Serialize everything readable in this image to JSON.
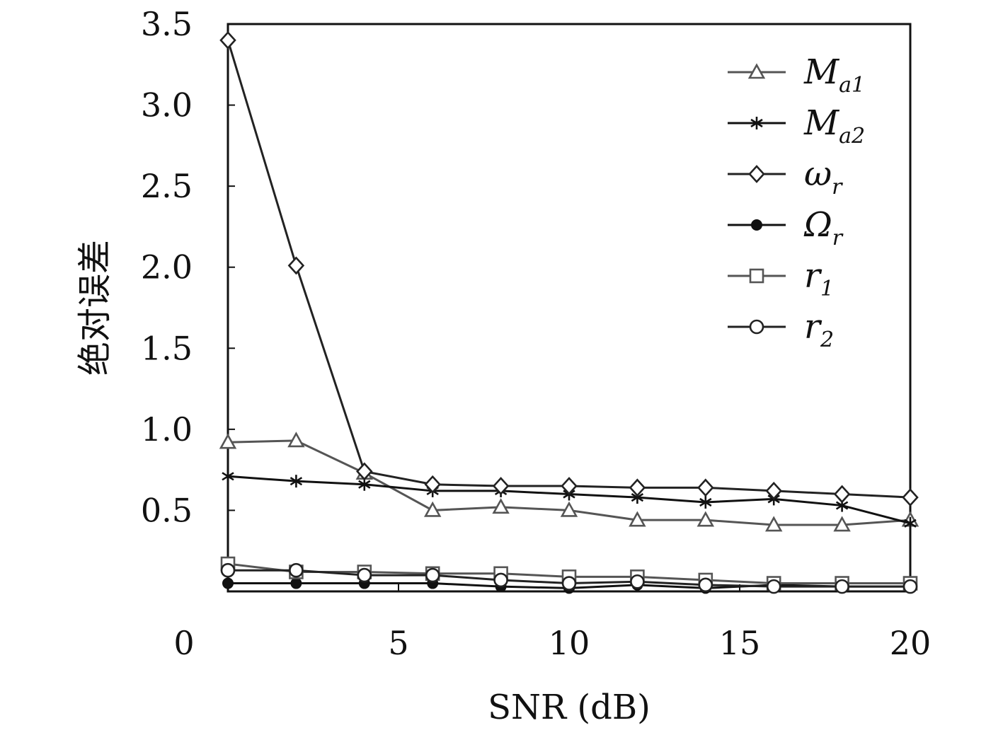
{
  "chart_data": {
    "type": "line",
    "xlabel": "SNR (dB)",
    "ylabel": "绝对误差",
    "xlim": [
      0,
      20
    ],
    "ylim": [
      0,
      3.5
    ],
    "x_ticks": [
      {
        "value": 0,
        "label": "0"
      },
      {
        "value": 5,
        "label": "5"
      },
      {
        "value": 10,
        "label": "10"
      },
      {
        "value": 15,
        "label": "15"
      },
      {
        "value": 20,
        "label": "20"
      }
    ],
    "y_ticks": [
      {
        "value": 0.5,
        "label": "0.5"
      },
      {
        "value": 1.0,
        "label": "1.0"
      },
      {
        "value": 1.5,
        "label": "1.5"
      },
      {
        "value": 2.0,
        "label": "2.0"
      },
      {
        "value": 2.5,
        "label": "2.5"
      },
      {
        "value": 3.0,
        "label": "3.0"
      },
      {
        "value": 3.5,
        "label": "3.5"
      }
    ],
    "x": [
      0,
      2,
      4,
      6,
      8,
      10,
      12,
      14,
      16,
      18,
      20
    ],
    "legend_position": "top-right",
    "grid": false,
    "series": [
      {
        "name": "M",
        "sub": "a1",
        "marker": "triangle",
        "color": "#555555",
        "values": [
          0.92,
          0.93,
          0.73,
          0.5,
          0.52,
          0.5,
          0.44,
          0.44,
          0.41,
          0.41,
          0.44
        ]
      },
      {
        "name": "M",
        "sub": "a2",
        "marker": "asterisk",
        "color": "#111111",
        "values": [
          0.71,
          0.68,
          0.66,
          0.62,
          0.62,
          0.6,
          0.58,
          0.55,
          0.57,
          0.53,
          0.42
        ]
      },
      {
        "name": "ω",
        "sub": "r",
        "marker": "diamond",
        "color": "#222222",
        "values": [
          3.4,
          2.01,
          0.74,
          0.66,
          0.65,
          0.65,
          0.64,
          0.64,
          0.62,
          0.6,
          0.58
        ]
      },
      {
        "name": "Ω",
        "sub": "r",
        "marker": "dot",
        "color": "#111111",
        "values": [
          0.05,
          0.05,
          0.05,
          0.05,
          0.03,
          0.02,
          0.04,
          0.02,
          0.04,
          0.03,
          0.03
        ]
      },
      {
        "name": "r",
        "sub": "1",
        "marker": "square",
        "color": "#555555",
        "values": [
          0.17,
          0.12,
          0.12,
          0.11,
          0.11,
          0.09,
          0.09,
          0.07,
          0.05,
          0.05,
          0.05
        ]
      },
      {
        "name": "r",
        "sub": "2",
        "marker": "circle",
        "color": "#222222",
        "values": [
          0.13,
          0.13,
          0.1,
          0.1,
          0.07,
          0.05,
          0.06,
          0.04,
          0.03,
          0.03,
          0.03
        ]
      }
    ]
  }
}
